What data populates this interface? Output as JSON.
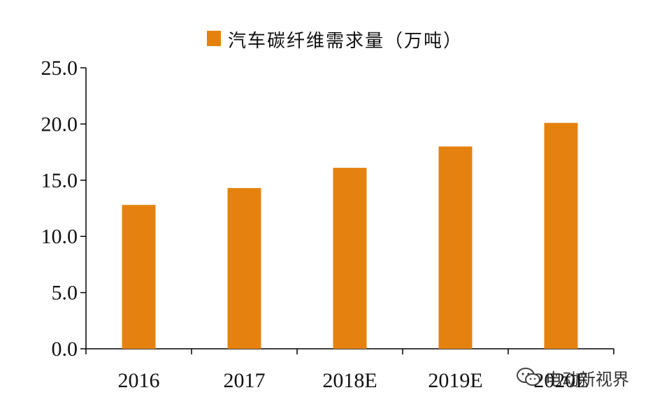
{
  "chart_data": {
    "type": "bar",
    "title": "",
    "legend": {
      "position": "top",
      "entries": [
        "汽车碳纤维需求量（万吨）"
      ]
    },
    "categories": [
      "2016",
      "2017",
      "2018E",
      "2019E",
      "2020E"
    ],
    "series": [
      {
        "name": "汽车碳纤维需求量（万吨）",
        "values": [
          12.8,
          14.3,
          16.1,
          18.0,
          20.1
        ]
      }
    ],
    "ylim": [
      0,
      25
    ],
    "yticks": [
      "0.0",
      "5.0",
      "10.0",
      "15.0",
      "20.0",
      "25.0"
    ],
    "xlabel": "",
    "ylabel": "",
    "grid": false,
    "colors": {
      "bar": "#E5820F",
      "axis": "#000000"
    }
  },
  "watermark": {
    "text": "电动新视界",
    "icon": "wechat-icon"
  }
}
